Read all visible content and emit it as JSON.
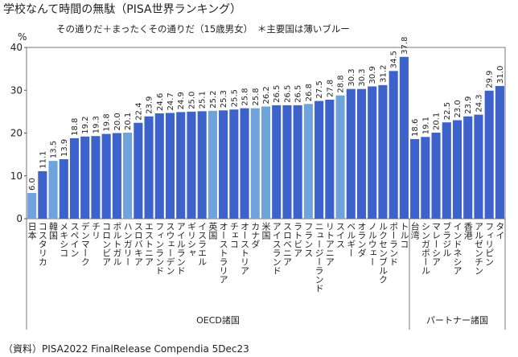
{
  "chart_data": {
    "type": "bar",
    "title": "学校なんて時間の無駄（PISA世界ランキング）",
    "subtitle": "その通りだ＋まったくその通りだ（15歳男女）　＊主要国は薄いブルー",
    "y_label": "%",
    "source": "（資料）PISA2022 FinalRelease Compendia 5Dec23",
    "ylim": [
      0,
      40
    ],
    "yticks": [
      0,
      10,
      20,
      30,
      40
    ],
    "grid": false,
    "groups": [
      {
        "name": "OECD諸国",
        "categories": [
          "日本",
          "コスタリカ",
          "韓国",
          "メキシコ",
          "スペイン",
          "デンマーク",
          "チリ",
          "コロンビア",
          "ポルトガル",
          "ハンガリー",
          "スロバキア",
          "エストニア",
          "フィンランド",
          "スウェーデン",
          "アイルランド",
          "ギリシャ",
          "イスラエル",
          "英国",
          "オーストラリア",
          "チェコ",
          "オーストリア",
          "カナダ",
          "米国",
          "アイスランド",
          "スロベニア",
          "ラトビア",
          "フランス",
          "ニュージーランド",
          "リトアニア",
          "スイス",
          "ベルギー",
          "オランダ",
          "ノルウェー",
          "ルクセンブルク",
          "ポーランド",
          "トルコ"
        ],
        "values": [
          6.0,
          11.1,
          13.5,
          13.9,
          18.8,
          19.2,
          19.3,
          19.8,
          20.0,
          20.1,
          22.4,
          23.9,
          24.6,
          24.7,
          24.9,
          25.0,
          25.1,
          25.2,
          25.3,
          25.5,
          25.8,
          25.8,
          26.2,
          26.5,
          26.5,
          26.5,
          26.8,
          27.5,
          27.8,
          28.8,
          30.3,
          30.3,
          30.9,
          31.2,
          34.5,
          37.8
        ],
        "value_labels": [
          "6.0",
          "11.1",
          "13.5",
          "13.9",
          "18.8",
          "19.2",
          "19.3",
          "19.8",
          "20.0",
          "20.1",
          "22.4",
          "23.9",
          "24.6",
          "24.7",
          "24.9",
          "25.0",
          "25.1",
          "25.2",
          "25.3",
          "25.5",
          "25.8",
          "25.8",
          "26.2",
          "26.5",
          "26.5",
          "26.5",
          "26.8",
          "27.5",
          "27.8",
          "28.8",
          "30.3",
          "30.3",
          "30.9",
          "31.2",
          "34.5",
          "37.8"
        ],
        "colors": [
          "#6fa3dc",
          "#3d62cb",
          "#6fa3dc",
          "#3d62cb",
          "#3d62cb",
          "#3d62cb",
          "#3d62cb",
          "#3d62cb",
          "#3d62cb",
          "#6fa3dc",
          "#3d62cb",
          "#3d62cb",
          "#3d62cb",
          "#3d62cb",
          "#3d62cb",
          "#3d62cb",
          "#3d62cb",
          "#6fa3dc",
          "#3d62cb",
          "#3d62cb",
          "#3d62cb",
          "#6fa3dc",
          "#6fa3dc",
          "#3d62cb",
          "#3d62cb",
          "#3d62cb",
          "#6fa3dc",
          "#3d62cb",
          "#3d62cb",
          "#6fa3dc",
          "#3d62cb",
          "#3d62cb",
          "#3d62cb",
          "#3d62cb",
          "#3d62cb",
          "#3d62cb"
        ]
      },
      {
        "name": "パートナー諸国",
        "categories": [
          "台湾",
          "シンガポール",
          "マレーシア",
          "ブラジル",
          "インドネシア",
          "香港",
          "アルゼンチン",
          "フィリピン",
          "タイ"
        ],
        "values": [
          18.6,
          19.1,
          20.1,
          22.5,
          23.0,
          23.9,
          24.3,
          29.9,
          31.0
        ],
        "value_labels": [
          "18.6",
          "19.1",
          "20.1",
          "22.5",
          "23.0",
          "23.9",
          "24.3",
          "29.9",
          "31.0"
        ],
        "colors": [
          "#3d62cb",
          "#3d62cb",
          "#3d62cb",
          "#3d62cb",
          "#3d62cb",
          "#3d62cb",
          "#3d62cb",
          "#3d62cb",
          "#3d62cb"
        ]
      }
    ]
  }
}
